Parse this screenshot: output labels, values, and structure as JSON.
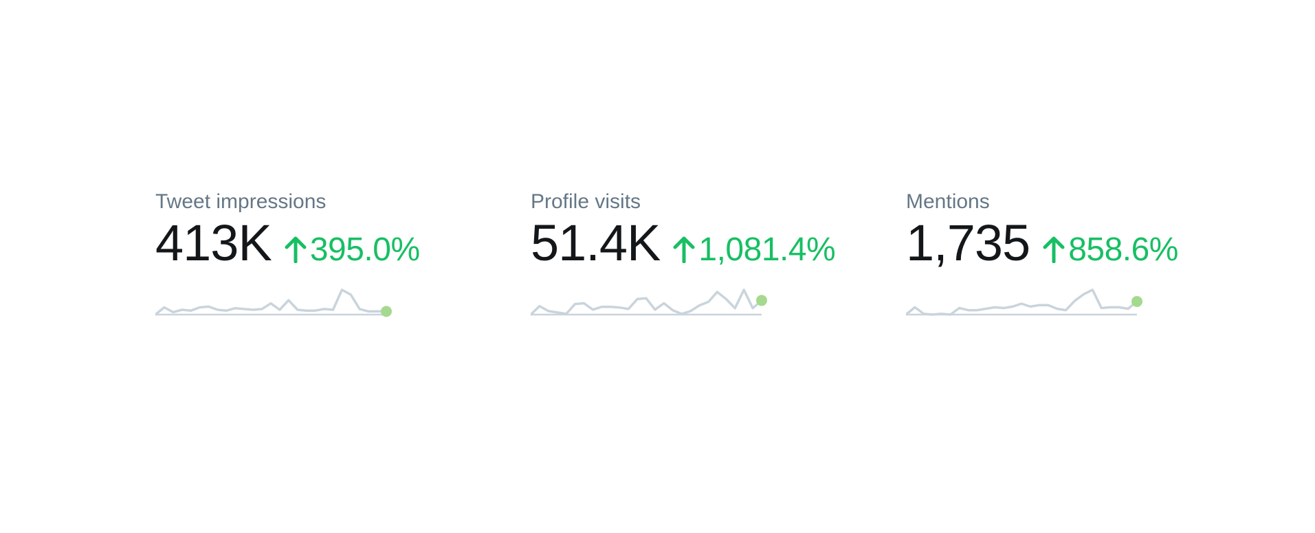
{
  "colors": {
    "label": "#657786",
    "value": "#14171a",
    "positive": "#17bf63",
    "sparkline": "#c9d4dc",
    "sparkline_dot": "#a5d98f"
  },
  "metrics": [
    {
      "label": "Tweet impressions",
      "value": "413K",
      "change": "395.0%",
      "trend_icon": "arrow-up-icon",
      "sparkline": [
        0,
        9,
        3,
        6,
        5,
        9,
        10,
        6,
        5,
        8,
        7,
        6,
        7,
        14,
        6,
        18,
        6,
        5,
        5,
        7,
        6,
        31,
        25,
        7,
        4,
        4,
        4
      ]
    },
    {
      "label": "Profile visits",
      "value": "51.4K",
      "change": "1,081.4%",
      "trend_icon": "arrow-up-icon",
      "sparkline": [
        0,
        12,
        5,
        3,
        1,
        15,
        16,
        7,
        11,
        11,
        10,
        8,
        22,
        23,
        7,
        16,
        6,
        1,
        5,
        13,
        18,
        32,
        22,
        9,
        35,
        9,
        20
      ]
    },
    {
      "label": "Mentions",
      "value": "1,735",
      "change": "858.6%",
      "trend_icon": "arrow-up-icon",
      "sparkline": [
        0,
        10,
        1,
        0,
        1,
        0,
        9,
        6,
        6,
        8,
        10,
        9,
        11,
        15,
        11,
        13,
        13,
        8,
        6,
        19,
        28,
        34,
        9,
        10,
        10,
        8,
        18
      ]
    }
  ]
}
